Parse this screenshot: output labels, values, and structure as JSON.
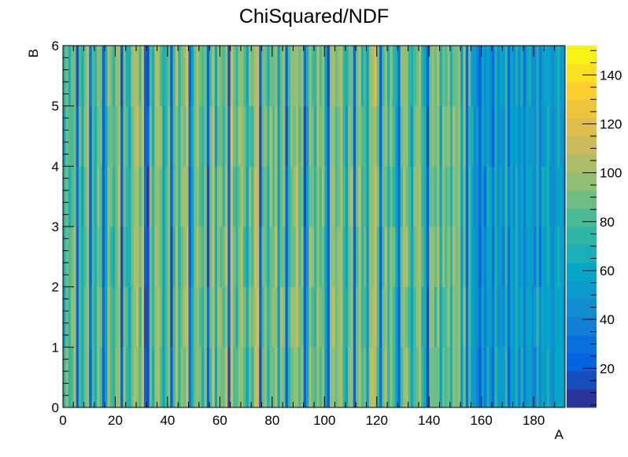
{
  "chart_data": {
    "type": "heatmap",
    "title": "ChiSquared/NDF",
    "xlabel": "A",
    "ylabel": "B",
    "xlim": [
      0,
      192
    ],
    "ylim": [
      0,
      6
    ],
    "x_ticks": [
      0,
      20,
      40,
      60,
      80,
      100,
      120,
      140,
      160,
      180
    ],
    "y_ticks": [
      0,
      1,
      2,
      3,
      4,
      5,
      6
    ],
    "z_range": [
      4,
      152
    ],
    "colorbar_ticks": [
      20,
      40,
      60,
      80,
      100,
      120,
      140
    ],
    "palette": [
      "#352a87",
      "#0363e1",
      "#1485d4",
      "#06a7c6",
      "#38b99e",
      "#92bf73",
      "#d9ba56",
      "#fcce2e",
      "#f9fb0e"
    ],
    "x_bins": 192,
    "y_bins": 6,
    "pattern_note": "",
    "column_means": [
      68,
      92,
      74,
      88,
      96,
      20,
      84,
      64,
      90,
      100,
      22,
      78,
      70,
      94,
      86,
      24,
      62,
      98,
      80,
      72,
      90,
      102,
      20,
      88,
      76,
      60,
      92,
      96,
      104,
      84,
      108,
      22,
      18,
      90,
      74,
      96,
      100,
      88,
      64,
      80,
      94,
      20,
      84,
      104,
      70,
      92,
      98,
      110,
      24,
      62,
      88,
      100,
      86,
      74,
      92,
      22,
      84,
      108,
      60,
      96,
      90,
      80,
      102,
      18,
      110,
      88,
      72,
      96,
      98,
      84,
      62,
      92,
      80,
      106,
      112,
      20,
      84,
      92,
      70,
      96,
      88,
      104,
      60,
      94,
      90,
      20,
      76,
      88,
      96,
      104,
      82,
      92,
      22,
      60,
      98,
      88,
      74,
      100,
      84,
      96,
      62,
      24,
      90,
      102,
      86,
      94,
      100,
      80,
      60,
      92,
      98,
      20,
      88,
      104,
      76,
      84,
      60,
      96,
      102,
      110,
      80,
      22,
      88,
      98,
      70,
      92,
      84,
      62,
      24,
      90,
      100,
      96,
      80,
      60,
      88,
      94,
      104,
      74,
      64,
      20,
      92,
      96,
      84,
      98,
      62,
      88,
      80,
      90,
      70,
      96,
      84,
      100,
      58,
      92,
      22,
      84,
      60,
      50,
      46,
      24,
      54,
      40,
      62,
      52,
      30,
      66,
      48,
      56,
      44,
      70,
      28,
      58,
      52,
      64,
      46,
      60,
      34,
      56,
      62,
      50,
      44,
      68,
      38,
      58,
      56,
      60,
      50,
      44,
      56,
      64,
      52,
      48
    ]
  }
}
